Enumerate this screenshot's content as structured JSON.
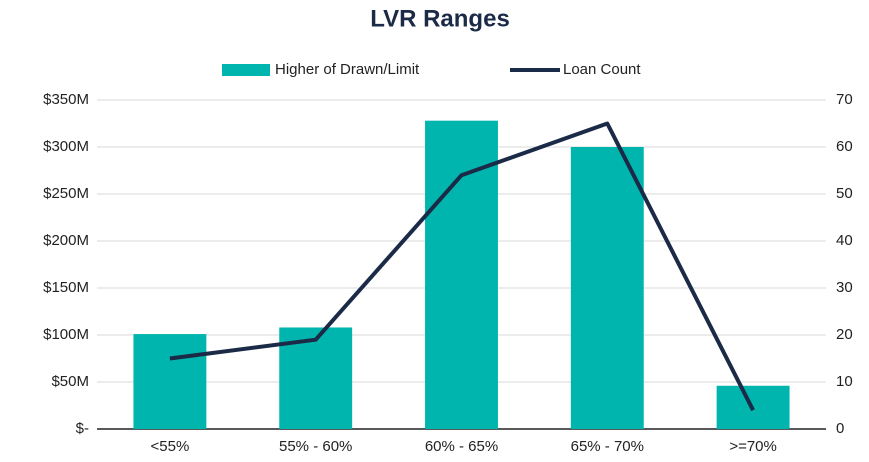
{
  "chart_data": {
    "type": "bar_line",
    "title": "LVR Ranges",
    "categories": [
      "<55%",
      "55% - 60%",
      "60% - 65%",
      "65% - 70%",
      ">=70%"
    ],
    "series": [
      {
        "name": "Higher of Drawn/Limit",
        "color": "#00b5ad",
        "type": "bar",
        "values": [
          101000000,
          108000000,
          328000000,
          300000000,
          46000000
        ]
      },
      {
        "name": "Loan Count",
        "color": "#1b2a47",
        "type": "line",
        "axis": "y2",
        "values": [
          15,
          19,
          54,
          65,
          4
        ]
      }
    ],
    "ylim": [
      0,
      350000000
    ],
    "yticks": [
      {
        "value": 0,
        "label": "$-"
      },
      {
        "value": 50000000,
        "label": "$50M"
      },
      {
        "value": 100000000,
        "label": "$100M"
      },
      {
        "value": 150000000,
        "label": "$150M"
      },
      {
        "value": 200000000,
        "label": "$200M"
      },
      {
        "value": 250000000,
        "label": "$250M"
      },
      {
        "value": 300000000,
        "label": "$300M"
      },
      {
        "value": 350000000,
        "label": "$350M"
      }
    ],
    "y2lim": [
      0,
      70
    ],
    "y2ticks": [
      0,
      10,
      20,
      30,
      40,
      50,
      60,
      70
    ],
    "grid": true,
    "legend": "top"
  }
}
